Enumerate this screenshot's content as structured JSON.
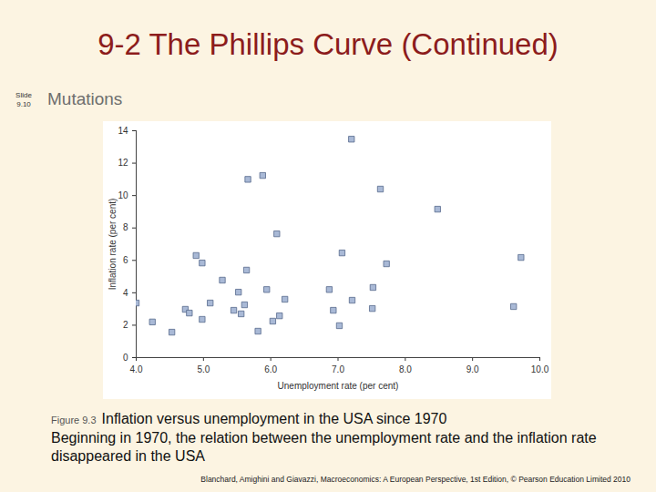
{
  "slide": {
    "title": "9-2 The Phillips Curve (Continued)",
    "slide_number": "Slide 9.10",
    "subtitle": "Mutations",
    "figure_label": "Figure 9.3",
    "caption": "Inflation versus unemployment in the USA since 1970",
    "note": "Beginning in 1970, the relation between the unemployment rate and the inflation rate disappeared in the USA",
    "source": "Blanchard, Amighini and Giavazzi, Macroeconomics: A European Perspective, 1st Edition, © Pearson Education Limited 2010"
  },
  "chart_data": {
    "type": "scatter",
    "x_label": "Unemployment rate (per cent)",
    "y_label": "Inflation rate (per cent)",
    "x": [
      4.0,
      4.24,
      4.53,
      4.73,
      4.79,
      4.89,
      4.98,
      4.98,
      5.1,
      5.28,
      5.45,
      5.52,
      5.56,
      5.61,
      5.64,
      5.66,
      5.88,
      5.81,
      5.94,
      6.03,
      6.09,
      6.13,
      6.21,
      6.87,
      6.93,
      7.02,
      7.06,
      7.2,
      7.21,
      7.51,
      7.52,
      7.63,
      7.72,
      8.48,
      9.61,
      9.72
    ],
    "values": [
      3.37,
      2.2,
      1.57,
      2.98,
      2.75,
      6.3,
      5.84,
      2.36,
      3.37,
      4.78,
      2.92,
      4.04,
      2.7,
      3.26,
      5.4,
      11.0,
      11.24,
      1.63,
      4.2,
      2.25,
      7.64,
      2.58,
      3.6,
      4.2,
      2.92,
      1.97,
      6.46,
      13.48,
      3.54,
      3.03,
      4.33,
      10.4,
      5.79,
      9.16,
      3.15,
      6.18
    ],
    "color": "#a9b9d6",
    "marker": "square",
    "grid": false,
    "xlim": [
      4,
      10
    ],
    "xticks": [
      4,
      5,
      6,
      7,
      8,
      9,
      10
    ],
    "ylim": [
      0,
      14
    ],
    "yticks": [
      0,
      2,
      4,
      6,
      8,
      10,
      12,
      14
    ]
  }
}
